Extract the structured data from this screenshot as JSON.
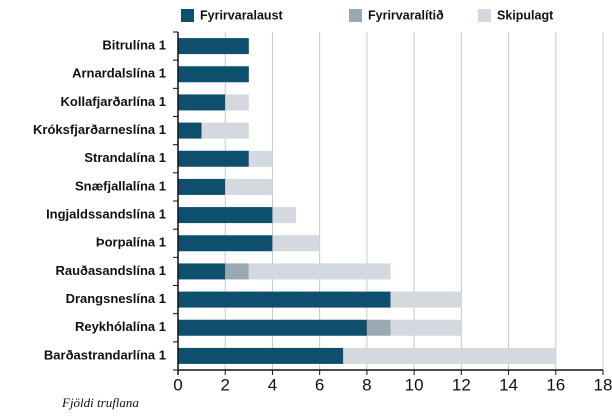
{
  "chart_data": {
    "type": "stacked-bar-horizontal",
    "x_label": "Fjöldi truflana",
    "categories": [
      "Bitrulína 1",
      "Arnardalslína 1",
      "Kollafjarðarlína 1",
      "Króksfjarðarneslína 1",
      "Strandalína 1",
      "Snæfjallalína 1",
      "Ingjaldssandslína 1",
      "Þorpalína 1",
      "Rauðasandslína 1",
      "Drangsneslína 1",
      "Reykhólalína 1",
      "Barðastrandarlína 1"
    ],
    "series": [
      {
        "name": "Fyrirvaralaust",
        "color": "#0f4f6e",
        "values": [
          3,
          3,
          2,
          1,
          3,
          2,
          4,
          4,
          2,
          9,
          8,
          7
        ]
      },
      {
        "name": "Fyrirvaralítið",
        "color": "#9aa8b2",
        "values": [
          0,
          0,
          0,
          0,
          0,
          0,
          0,
          0,
          1,
          0,
          1,
          0
        ]
      },
      {
        "name": "Skipulagt",
        "color": "#d3d9de",
        "values": [
          0,
          0,
          1,
          2,
          1,
          2,
          1,
          2,
          6,
          3,
          3,
          9
        ]
      }
    ],
    "xlim": [
      0,
      18
    ],
    "xticks": [
      0,
      2,
      4,
      6,
      8,
      10,
      12,
      14,
      16,
      18
    ],
    "grid": true
  }
}
